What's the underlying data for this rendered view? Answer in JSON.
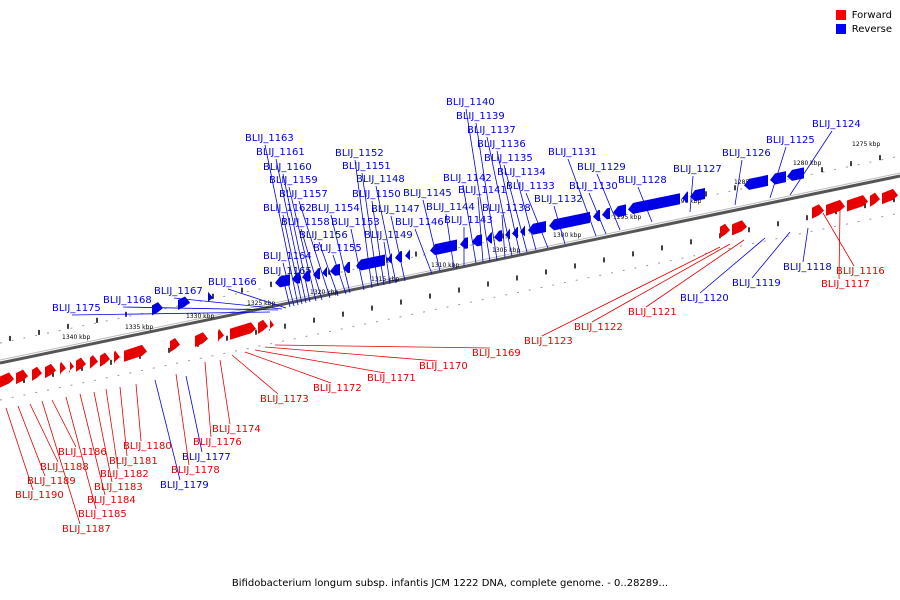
{
  "caption": "Bifidobacterium longum subsp. infantis JCM 1222 DNA, complete genome. - 0..28289...",
  "legend": [
    {
      "label": "Forward",
      "color": "#ff0000"
    },
    {
      "label": "Reverse",
      "color": "#0000ff"
    }
  ],
  "colors": {
    "forward": "#e60000",
    "reverse": "#0000e6",
    "axis": "#888888"
  },
  "scale_labels": [
    "1275 kbp",
    "1280 kbp",
    "1285 kbp",
    "1290 kbp",
    "1295 kbp",
    "1300 kbp",
    "1305 kbp",
    "1310 kbp",
    "1315 kbp",
    "1320 kbp",
    "1325 kbp",
    "1330 kbp",
    "1335 kbp",
    "1340 kbp"
  ],
  "reverse_genes": [
    "BLIJ_1124",
    "BLIJ_1125",
    "BLIJ_1126",
    "BLIJ_1127",
    "BLIJ_1128",
    "BLIJ_1129",
    "BLIJ_1130",
    "BLIJ_1131",
    "BLIJ_1132",
    "BLIJ_1133",
    "BLIJ_1134",
    "BLIJ_1135",
    "BLIJ_1136",
    "BLIJ_1137",
    "BLIJ_1138",
    "BLIJ_1139",
    "BLIJ_1140",
    "BLIJ_1141",
    "BLIJ_1142",
    "BLIJ_1143",
    "BLIJ_1144",
    "BLIJ_1145",
    "BLIJ_1146",
    "BLIJ_1147",
    "BLIJ_1148",
    "BLIJ_1149",
    "BLIJ_1150",
    "BLIJ_1151",
    "BLIJ_1152",
    "BLIJ_1153",
    "BLIJ_1154",
    "BLIJ_1155",
    "BLIJ_1156",
    "BLIJ_1157",
    "BLIJ_1158",
    "BLIJ_1159",
    "BLIJ_1160",
    "BLIJ_1161",
    "BLIJ_1162",
    "BLIJ_1163",
    "BLIJ_1164",
    "BLIJ_1165",
    "BLIJ_1166",
    "BLIJ_1167",
    "BLIJ_1168",
    "BLIJ_1175",
    "BLIJ_1118",
    "BLIJ_1119",
    "BLIJ_1120",
    "BLIJ_1177",
    "BLIJ_1179"
  ],
  "forward_genes": [
    "BLIJ_1116",
    "BLIJ_1117",
    "BLIJ_1121",
    "BLIJ_1122",
    "BLIJ_1123",
    "BLIJ_1169",
    "BLIJ_1170",
    "BLIJ_1171",
    "BLIJ_1172",
    "BLIJ_1173",
    "BLIJ_1174",
    "BLIJ_1176",
    "BLIJ_1178",
    "BLIJ_1180",
    "BLIJ_1181",
    "BLIJ_1182",
    "BLIJ_1183",
    "BLIJ_1184",
    "BLIJ_1185",
    "BLIJ_1186",
    "BLIJ_1187",
    "BLIJ_1188",
    "BLIJ_1189",
    "BLIJ_1190"
  ]
}
